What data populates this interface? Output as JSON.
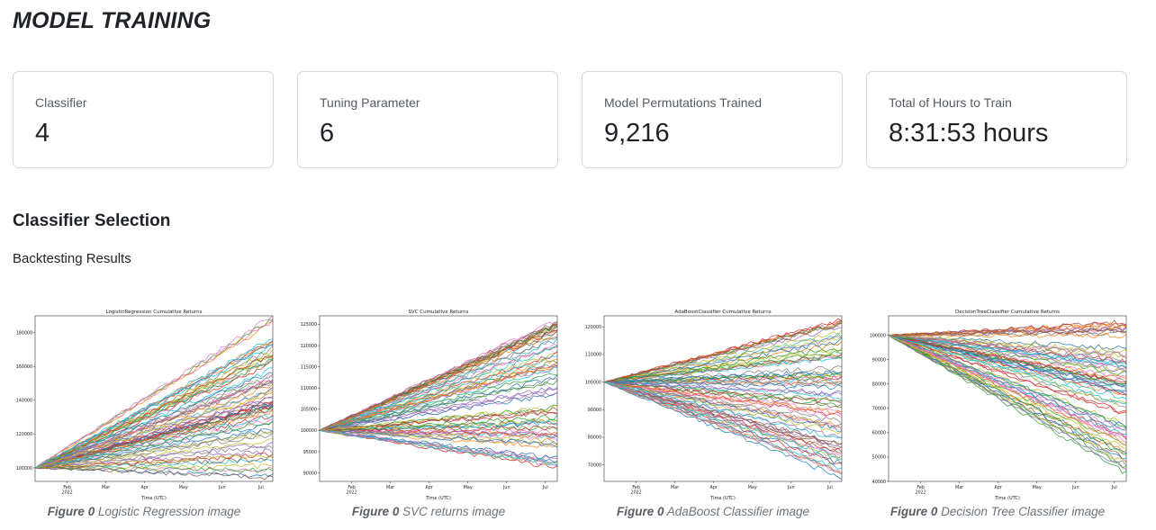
{
  "page": {
    "title": "MODEL TRAINING"
  },
  "stats": [
    {
      "label": "Classifier",
      "value": "4"
    },
    {
      "label": "Tuning Parameter",
      "value": "6"
    },
    {
      "label": "Model Permutations Trained",
      "value": "9,216"
    },
    {
      "label": "Total of Hours to Train",
      "value": "8:31:53 hours"
    }
  ],
  "section": {
    "title": "Classifier Selection",
    "subtitle": "Backtesting Results"
  },
  "chart_data": [
    {
      "type": "line",
      "title": "LogisticRegression Cumulative Returns",
      "xlabel": "Time (UTC)",
      "x_ticks": [
        "Feb\n2022",
        "Mar",
        "Apr",
        "May",
        "Jun",
        "Jul"
      ],
      "y_ticks": [
        "100000",
        "120000",
        "140000",
        "160000",
        "180000"
      ],
      "ylim": [
        92000,
        190000
      ],
      "start_value": 100000,
      "series_summary": {
        "count": "many",
        "end_range": [
          93000,
          190000
        ]
      },
      "caption_prefix": "Figure 0",
      "caption": "Logistic Regression image"
    },
    {
      "type": "line",
      "title": "SVC Cumulative Returns",
      "xlabel": "Time (UTC)",
      "x_ticks": [
        "Feb\n2022",
        "Mar",
        "Apr",
        "May",
        "Jun",
        "Jul"
      ],
      "y_ticks": [
        "90000",
        "95000",
        "100000",
        "105000",
        "110000",
        "115000",
        "120000",
        "125000"
      ],
      "ylim": [
        88000,
        127000
      ],
      "start_value": 100000,
      "series_summary": {
        "count": "many",
        "end_range": [
          91000,
          126000
        ]
      },
      "caption_prefix": "Figure 0",
      "caption": "SVC returns image"
    },
    {
      "type": "line",
      "title": "AdaBoostClassifier Cumulative Returns",
      "xlabel": "Time (UTC)",
      "x_ticks": [
        "Feb\n2022",
        "Mar",
        "Apr",
        "May",
        "Jun",
        "Jul"
      ],
      "y_ticks": [
        "70000",
        "80000",
        "90000",
        "100000",
        "110000",
        "120000"
      ],
      "ylim": [
        64000,
        124000
      ],
      "start_value": 100000,
      "series_summary": {
        "count": "many",
        "end_range": [
          65000,
          123000
        ]
      },
      "caption_prefix": "Figure 0",
      "caption": "AdaBoost Classifier image"
    },
    {
      "type": "line",
      "title": "DecisionTreeClassifier Cumulative Returns",
      "xlabel": "Time (UTC)",
      "x_ticks": [
        "Feb\n2022",
        "Mar",
        "Apr",
        "May",
        "Jun",
        "Jul"
      ],
      "y_ticks": [
        "40000",
        "50000",
        "60000",
        "70000",
        "80000",
        "90000",
        "100000"
      ],
      "ylim": [
        40000,
        108000
      ],
      "start_value": 100000,
      "series_summary": {
        "count": "many",
        "end_range": [
          43000,
          106000
        ]
      },
      "caption_prefix": "Figure 0",
      "caption": "Decision Tree Classifier image"
    }
  ],
  "colors": {
    "title": "#1f2328",
    "card_border": "#d3d6da",
    "caption": "#6c757d",
    "series_palette": [
      "#1f77b4",
      "#ff7f0e",
      "#2ca02c",
      "#d62728",
      "#9467bd",
      "#8c564b",
      "#e377c2",
      "#7f7f7f",
      "#bcbd22",
      "#17becf"
    ]
  }
}
